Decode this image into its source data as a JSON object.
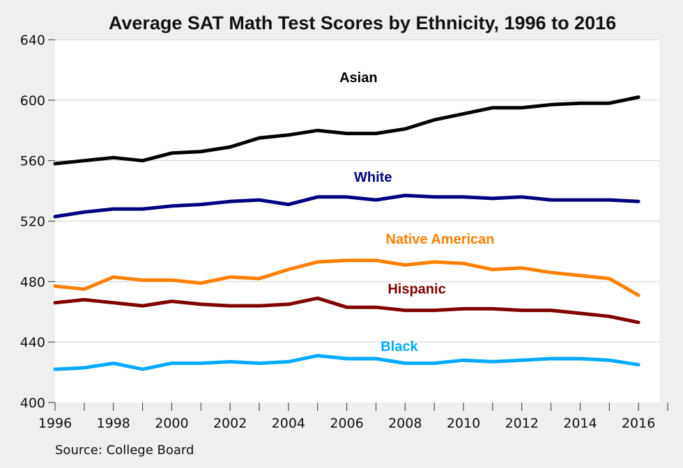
{
  "chart_data": {
    "type": "line",
    "title": "Average SAT Math Test Scores by Ethnicity, 1996 to 2016",
    "xlabel": "",
    "ylabel": "",
    "source": "Source: College Board",
    "x": [
      1996,
      1997,
      1998,
      1999,
      2000,
      2001,
      2002,
      2003,
      2004,
      2005,
      2006,
      2007,
      2008,
      2009,
      2010,
      2011,
      2012,
      2013,
      2014,
      2015,
      2016
    ],
    "xlim": [
      1996,
      2017
    ],
    "ylim": [
      400,
      640
    ],
    "x_ticks": [
      "1996",
      "1998",
      "2000",
      "2002",
      "2004",
      "2006",
      "2008",
      "2010",
      "2012",
      "2014",
      "2016"
    ],
    "y_ticks": [
      "400",
      "440",
      "480",
      "520",
      "560",
      "600",
      "640"
    ],
    "grid": true,
    "legend": "inline labels",
    "series": [
      {
        "name": "Asian",
        "color": "#000000",
        "values": [
          558,
          560,
          562,
          560,
          565,
          566,
          569,
          575,
          577,
          580,
          578,
          578,
          581,
          587,
          591,
          595,
          595,
          597,
          598,
          598,
          602
        ]
      },
      {
        "name": "White",
        "color": "#000080",
        "values": [
          523,
          526,
          528,
          528,
          530,
          531,
          533,
          534,
          531,
          536,
          536,
          534,
          537,
          536,
          536,
          535,
          536,
          534,
          534,
          534,
          533
        ]
      },
      {
        "name": "Native American",
        "color": "#ff8000",
        "values": [
          477,
          475,
          483,
          481,
          481,
          479,
          483,
          482,
          488,
          493,
          494,
          494,
          491,
          493,
          492,
          488,
          489,
          486,
          484,
          482,
          471
        ]
      },
      {
        "name": "Hispanic",
        "color": "#800000",
        "values": [
          466,
          468,
          466,
          464,
          467,
          465,
          464,
          464,
          465,
          469,
          463,
          463,
          461,
          461,
          462,
          462,
          461,
          461,
          459,
          457,
          453
        ]
      },
      {
        "name": "Black",
        "color": "#00aaff",
        "values": [
          422,
          423,
          426,
          422,
          426,
          426,
          427,
          426,
          427,
          431,
          429,
          429,
          426,
          426,
          428,
          427,
          428,
          429,
          429,
          428,
          425
        ]
      }
    ]
  }
}
